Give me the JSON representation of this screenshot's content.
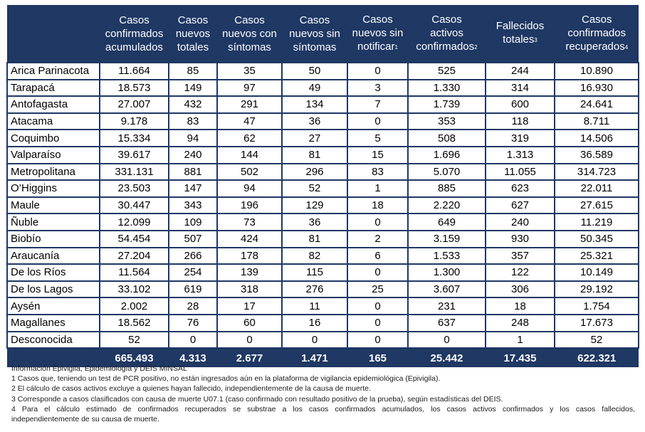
{
  "table": {
    "headers": [
      {
        "text": "",
        "sup": ""
      },
      {
        "text": "Casos\nconfirmados\nacumulados",
        "sup": ""
      },
      {
        "text": "Casos\nnuevos\ntotales",
        "sup": ""
      },
      {
        "text": "Casos\nnuevos con\nsíntomas",
        "sup": ""
      },
      {
        "text": "Casos\nnuevos sin\nsíntomas",
        "sup": ""
      },
      {
        "text": "Casos\nnuevos sin\nnotificar",
        "sup": "1"
      },
      {
        "text": "Casos\nactivos\nconfirmados",
        "sup": "2"
      },
      {
        "text": "Fallecidos\ntotales",
        "sup": "3"
      },
      {
        "text": "Casos\nconfirmados\nrecuperados",
        "sup": "4"
      }
    ],
    "rows": [
      [
        "Arica Parinacota",
        "11.664",
        "85",
        "35",
        "50",
        "0",
        "525",
        "244",
        "10.890"
      ],
      [
        "Tarapacá",
        "18.573",
        "149",
        "97",
        "49",
        "3",
        "1.330",
        "314",
        "16.930"
      ],
      [
        "Antofagasta",
        "27.007",
        "432",
        "291",
        "134",
        "7",
        "1.739",
        "600",
        "24.641"
      ],
      [
        "Atacama",
        "9.178",
        "83",
        "47",
        "36",
        "0",
        "353",
        "118",
        "8.711"
      ],
      [
        "Coquimbo",
        "15.334",
        "94",
        "62",
        "27",
        "5",
        "508",
        "319",
        "14.506"
      ],
      [
        "Valparaíso",
        "39.617",
        "240",
        "144",
        "81",
        "15",
        "1.696",
        "1.313",
        "36.589"
      ],
      [
        "Metropolitana",
        "331.131",
        "881",
        "502",
        "296",
        "83",
        "5.070",
        "11.055",
        "314.723"
      ],
      [
        "O’Higgins",
        "23.503",
        "147",
        "94",
        "52",
        "1",
        "885",
        "623",
        "22.011"
      ],
      [
        "Maule",
        "30.447",
        "343",
        "196",
        "129",
        "18",
        "2.220",
        "627",
        "27.615"
      ],
      [
        "Ñuble",
        "12.099",
        "109",
        "73",
        "36",
        "0",
        "649",
        "240",
        "11.219"
      ],
      [
        "Biobío",
        "54.454",
        "507",
        "424",
        "81",
        "2",
        "3.159",
        "930",
        "50.345"
      ],
      [
        "Araucanía",
        "27.204",
        "266",
        "178",
        "82",
        "6",
        "1.533",
        "357",
        "25.321"
      ],
      [
        "De los Ríos",
        "11.564",
        "254",
        "139",
        "115",
        "0",
        "1.300",
        "122",
        "10.149"
      ],
      [
        "De los Lagos",
        "33.102",
        "619",
        "318",
        "276",
        "25",
        "3.607",
        "306",
        "29.192"
      ],
      [
        "Aysén",
        "2.002",
        "28",
        "17",
        "11",
        "0",
        "231",
        "18",
        "1.754"
      ],
      [
        "Magallanes",
        "18.562",
        "76",
        "60",
        "16",
        "0",
        "637",
        "248",
        "17.673"
      ],
      [
        "Desconocida",
        "52",
        "0",
        "0",
        "0",
        "0",
        "0",
        "1",
        "52"
      ]
    ],
    "totals": [
      "",
      "665.493",
      "4.313",
      "2.677",
      "1.471",
      "165",
      "25.442",
      "17.435",
      "622.321"
    ]
  },
  "notes": [
    "Información Epivigila, Epidemiología y DEIS MINSAL",
    "1 Casos que, teniendo un test de PCR positivo, no están ingresados aún en la plataforma de vigilancia epidemiológica (Epivigila).",
    "2 El cálculo de casos activos excluye a quienes hayan fallecido, independientemente de la causa de muerte.",
    "3 Corresponde a casos clasificados con causa de muerte U07.1 (caso confirmado con resultado positivo de la prueba), según estadísticas del DEIS.",
    "4 Para el cálculo estimado de confirmados recuperados se substrae a los casos confirmados acumulados, los casos activos confirmados y los casos fallecidos,",
    "independientemente de su causa de muerte."
  ]
}
